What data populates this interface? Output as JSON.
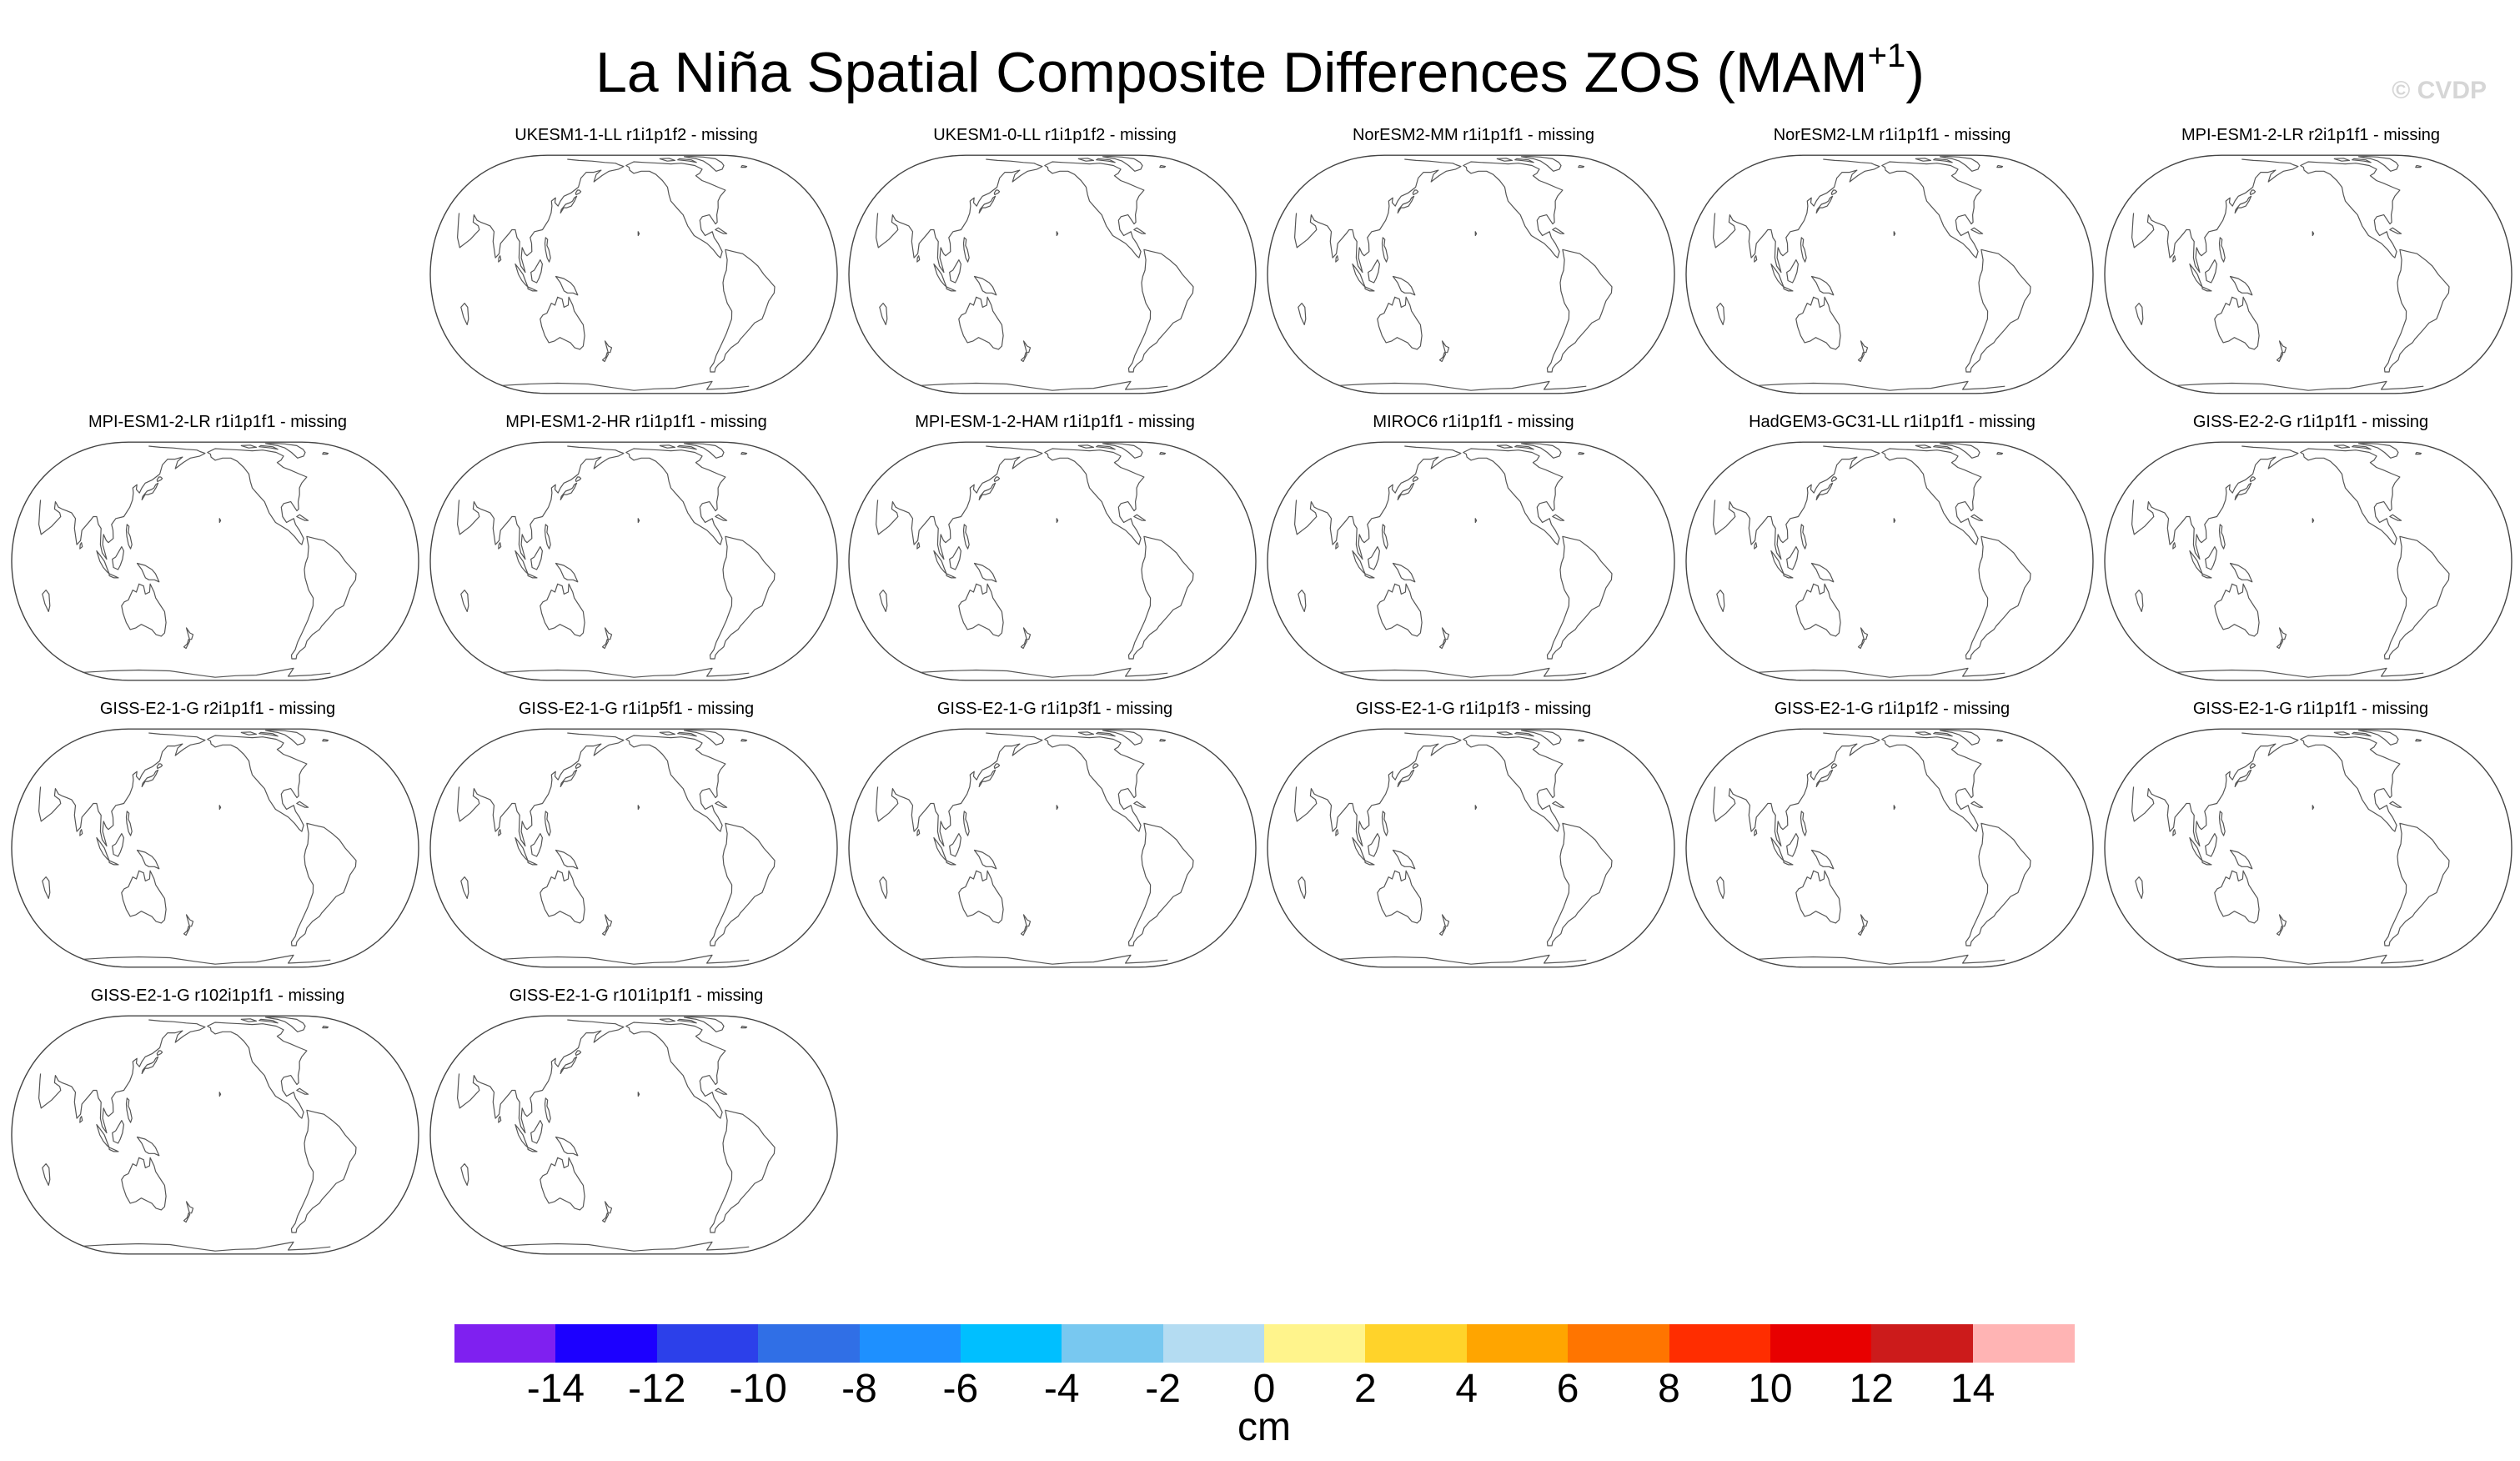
{
  "title": {
    "main": "La Niña Spatial Composite Differences ZOS (MAM",
    "superscript": "+1",
    "suffix": ")"
  },
  "watermark": "© CVDP",
  "panels": [
    {
      "title": "UKESM1-1-LL r1i1p1f2 - missing"
    },
    {
      "title": "UKESM1-0-LL r1i1p1f2 - missing"
    },
    {
      "title": "NorESM2-MM r1i1p1f1 - missing"
    },
    {
      "title": "NorESM2-LM r1i1p1f1 - missing"
    },
    {
      "title": "MPI-ESM1-2-LR r2i1p1f1 - missing"
    },
    {
      "title": "MPI-ESM1-2-LR r1i1p1f1 - missing"
    },
    {
      "title": "MPI-ESM1-2-HR r1i1p1f1 - missing"
    },
    {
      "title": "MPI-ESM-1-2-HAM r1i1p1f1 - missing"
    },
    {
      "title": "MIROC6 r1i1p1f1 - missing"
    },
    {
      "title": "HadGEM3-GC31-LL r1i1p1f1 - missing"
    },
    {
      "title": "GISS-E2-2-G r1i1p1f1 - missing"
    },
    {
      "title": "GISS-E2-1-G r2i1p1f1 - missing"
    },
    {
      "title": "GISS-E2-1-G r1i1p5f1 - missing"
    },
    {
      "title": "GISS-E2-1-G r1i1p3f1 - missing"
    },
    {
      "title": "GISS-E2-1-G r1i1p1f3 - missing"
    },
    {
      "title": "GISS-E2-1-G r1i1p1f2 - missing"
    },
    {
      "title": "GISS-E2-1-G r1i1p1f1 - missing"
    },
    {
      "title": "GISS-E2-1-G r102i1p1f1 - missing"
    },
    {
      "title": "GISS-E2-1-G r101i1p1f1 - missing"
    }
  ],
  "colorbar": {
    "colors": [
      "#7f20f0",
      "#1c00ff",
      "#2c40ea",
      "#306fe6",
      "#1e90ff",
      "#00bfff",
      "#78c8f0",
      "#b4dcf2",
      "#fff48c",
      "#ffd32a",
      "#ffa500",
      "#ff7500",
      "#ff2d00",
      "#e80000",
      "#cc1b1b",
      "#ffb4b4"
    ],
    "tick_labels": [
      "-14",
      "-12",
      "-10",
      "-8",
      "-6",
      "-4",
      "-2",
      "0",
      "2",
      "4",
      "6",
      "8",
      "10",
      "12",
      "14"
    ],
    "units": "cm"
  }
}
